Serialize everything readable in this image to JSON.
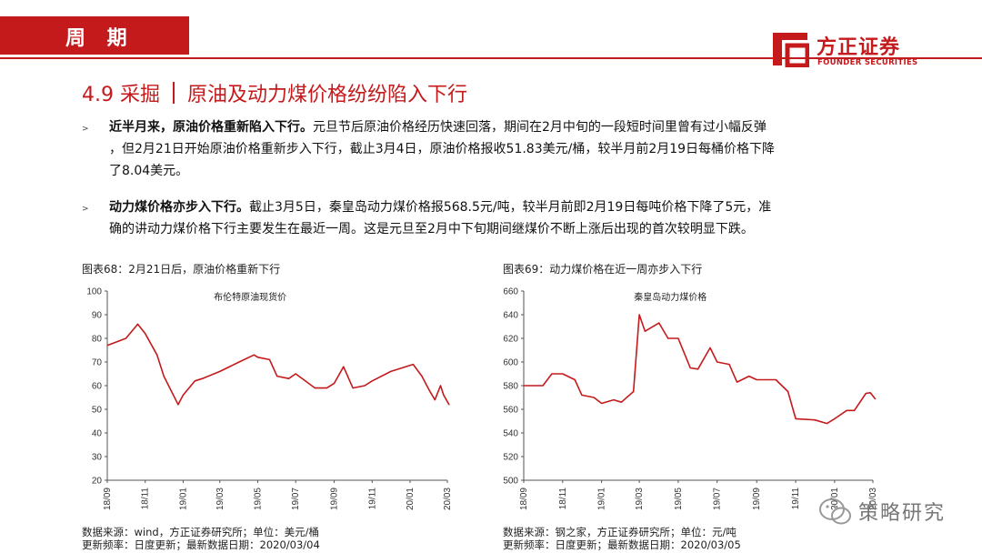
{
  "header": {
    "tab_label": "周 期"
  },
  "logo": {
    "cn": "方正证券",
    "en": "FOUNDER SECURITIES"
  },
  "title": {
    "number": "4.9 采掘",
    "text": "原油及动力煤价格纷纷陷入下行"
  },
  "bullets": [
    {
      "lead": "近半月来，原油价格重新陷入下行。",
      "line1": "元旦节后原油价格经历快速回落，期间在2月中旬的一段短时间里曾有过小幅反弹",
      "line2": "，但2月21日开始原油价格重新步入下行，截止3月4日，原油价格报收51.83美元/桶，较半月前2月19日每桶价格下降",
      "line3": "了8.04美元。"
    },
    {
      "lead": "动力煤价格亦步入下行。",
      "line1": "截止3月5日，秦皇岛动力煤价格报568.5元/吨，较半月前即2月19日每吨价格下降了5元，准",
      "line2": "确的讲动力煤价格下行主要发生在最近一周。这是元旦至2月中下旬期间继煤价不断上涨后出现的首次较明显下跌。"
    }
  ],
  "captions": {
    "left": "图表68：2月21日后，原油价格重新下行",
    "right": "图表69：动力煤价格在近一周亦步入下行"
  },
  "sources": {
    "left_line1": "数据来源：wind，方正证券研究所；单位：美元/桶",
    "left_line2": "更新频率：日度更新；最新数据日期：2020/03/04",
    "right_line1": "数据来源：钢之家，方正证券研究所；单位：元/吨",
    "right_line2": "更新频率：日度更新；最新数据日期：2020/03/05"
  },
  "watermark": {
    "text": "策略研究"
  },
  "colors": {
    "brand": "#c41a1c",
    "line": "#c41a1c"
  },
  "chart_data": [
    {
      "type": "line",
      "series": [
        {
          "name": "布伦特原油现货价",
          "x": [
            "2018-09",
            "2018-10",
            "2018-10-20",
            "2018-11",
            "2018-11-20",
            "2018-12",
            "2018-12-24",
            "2019-01",
            "2019-01-20",
            "2019-02",
            "2019-03",
            "2019-04",
            "2019-04-25",
            "2019-05",
            "2019-05-20",
            "2019-06",
            "2019-06-20",
            "2019-07",
            "2019-08",
            "2019-08-20",
            "2019-09",
            "2019-09-16",
            "2019-10",
            "2019-10-20",
            "2019-11",
            "2019-12",
            "2020-01-06",
            "2020-01-20",
            "2020-02",
            "2020-02-10",
            "2020-02-19",
            "2020-02-24",
            "2020-03-04"
          ],
          "values": [
            77,
            80,
            86,
            82,
            73,
            64,
            52,
            56,
            62,
            63,
            66,
            70,
            73,
            72,
            71,
            64,
            63,
            65,
            59,
            59,
            61,
            68,
            59,
            60,
            62,
            66,
            69,
            64,
            58,
            54,
            60,
            56,
            51.83
          ]
        }
      ],
      "xticks": [
        "18/09",
        "18/11",
        "19/01",
        "19/03",
        "19/05",
        "19/07",
        "19/09",
        "19/11",
        "20/01",
        "20/03"
      ],
      "ylim": [
        20,
        100
      ],
      "yticks": [
        20,
        30,
        40,
        50,
        60,
        70,
        80,
        90,
        100
      ]
    },
    {
      "type": "line",
      "series": [
        {
          "name": "秦皇岛动力煤价格",
          "x": [
            "2018-09",
            "2018-10",
            "2018-10-15",
            "2018-11",
            "2018-11-20",
            "2018-12",
            "2018-12-20",
            "2019-01",
            "2019-01-20",
            "2019-02",
            "2019-02-20",
            "2019-03",
            "2019-03-10",
            "2019-04",
            "2019-04-15",
            "2019-05",
            "2019-05-20",
            "2019-06",
            "2019-06-20",
            "2019-07",
            "2019-07-20",
            "2019-08",
            "2019-08-20",
            "2019-09",
            "2019-10",
            "2019-10-20",
            "2019-11",
            "2019-12",
            "2019-12-20",
            "2020-01",
            "2020-01-20",
            "2020-02",
            "2020-02-19",
            "2020-02-26",
            "2020-03-05"
          ],
          "values": [
            580,
            580,
            590,
            590,
            585,
            572,
            570,
            565,
            568,
            566,
            575,
            640,
            626,
            633,
            620,
            620,
            595,
            594,
            612,
            600,
            598,
            583,
            588,
            585,
            585,
            575,
            552,
            551,
            548,
            552,
            559,
            559,
            573.5,
            574,
            568.5
          ]
        }
      ],
      "xticks": [
        "18/09",
        "18/11",
        "19/01",
        "19/03",
        "19/05",
        "19/07",
        "19/09",
        "19/11",
        "20/01",
        "20/03"
      ],
      "ylim": [
        500,
        660
      ],
      "yticks": [
        500,
        520,
        540,
        560,
        580,
        600,
        620,
        640,
        660
      ]
    }
  ]
}
